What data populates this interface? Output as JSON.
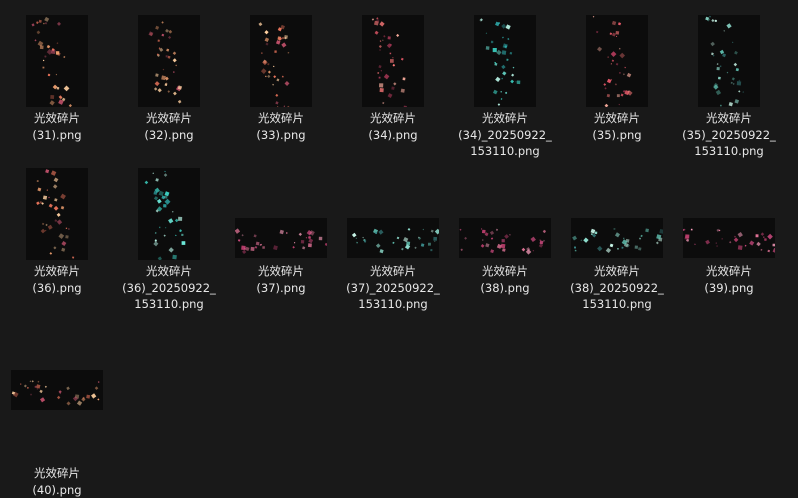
{
  "window": {
    "view": "large-icons",
    "background": "#191919",
    "text_color": "#e8e8e8"
  },
  "files": [
    {
      "name_line1": "光效碎片",
      "name_rest": "(31).png",
      "orientation": "portrait",
      "tint": "warm",
      "icon": "image-thumbnail-icon"
    },
    {
      "name_line1": "光效碎片",
      "name_rest": "(32).png",
      "orientation": "portrait",
      "tint": "warm",
      "icon": "image-thumbnail-icon"
    },
    {
      "name_line1": "光效碎片",
      "name_rest": "(33).png",
      "orientation": "portrait",
      "tint": "warm",
      "icon": "image-thumbnail-icon"
    },
    {
      "name_line1": "光效碎片",
      "name_rest": "(34).png",
      "orientation": "portrait",
      "tint": "red",
      "icon": "image-thumbnail-icon"
    },
    {
      "name_line1": "光效碎片",
      "name_rest": "(34)_20250922_\n153110.png",
      "orientation": "portrait",
      "tint": "cyan",
      "icon": "image-thumbnail-icon"
    },
    {
      "name_line1": "光效碎片",
      "name_rest": "(35).png",
      "orientation": "portrait",
      "tint": "red",
      "icon": "image-thumbnail-icon"
    },
    {
      "name_line1": "光效碎片",
      "name_rest": "(35)_20250922_\n153110.png",
      "orientation": "portrait",
      "tint": "teal",
      "icon": "image-thumbnail-icon"
    },
    {
      "name_line1": "光效碎片",
      "name_rest": "(36).png",
      "orientation": "portrait",
      "tint": "warm",
      "icon": "image-thumbnail-icon"
    },
    {
      "name_line1": "光效碎片",
      "name_rest": "(36)_20250922_\n153110.png",
      "orientation": "portrait",
      "tint": "cyan",
      "icon": "image-thumbnail-icon"
    },
    {
      "name_line1": "光效碎片",
      "name_rest": "(37).png",
      "orientation": "landscape",
      "tint": "pink",
      "icon": "image-thumbnail-icon"
    },
    {
      "name_line1": "光效碎片",
      "name_rest": "(37)_20250922_\n153110.png",
      "orientation": "landscape",
      "tint": "teal",
      "icon": "image-thumbnail-icon"
    },
    {
      "name_line1": "光效碎片",
      "name_rest": "(38).png",
      "orientation": "landscape",
      "tint": "pink",
      "icon": "image-thumbnail-icon"
    },
    {
      "name_line1": "光效碎片",
      "name_rest": "(38)_20250922_\n153110.png",
      "orientation": "landscape",
      "tint": "teal",
      "icon": "image-thumbnail-icon"
    },
    {
      "name_line1": "光效碎片",
      "name_rest": "(39).png",
      "orientation": "landscape",
      "tint": "pink",
      "icon": "image-thumbnail-icon"
    },
    {
      "name_line1": "光效碎片",
      "name_rest": "(40).png",
      "orientation": "landscape",
      "tint": "warm",
      "icon": "image-thumbnail-icon"
    }
  ],
  "tints": {
    "warm": [
      "#e8735a",
      "#f0a070",
      "#c0506a",
      "#ffd0a0"
    ],
    "red": [
      "#e85a6a",
      "#ff7a7a",
      "#b03a5a",
      "#ffb0a0"
    ],
    "pink": [
      "#e0508a",
      "#f07aa0",
      "#c04070",
      "#ffa0c0"
    ],
    "cyan": [
      "#40e0d0",
      "#70f0e0",
      "#30b0b0",
      "#c0fff0"
    ],
    "teal": [
      "#60c0b0",
      "#90e0d0",
      "#3a8a8a",
      "#d0fff0"
    ]
  }
}
